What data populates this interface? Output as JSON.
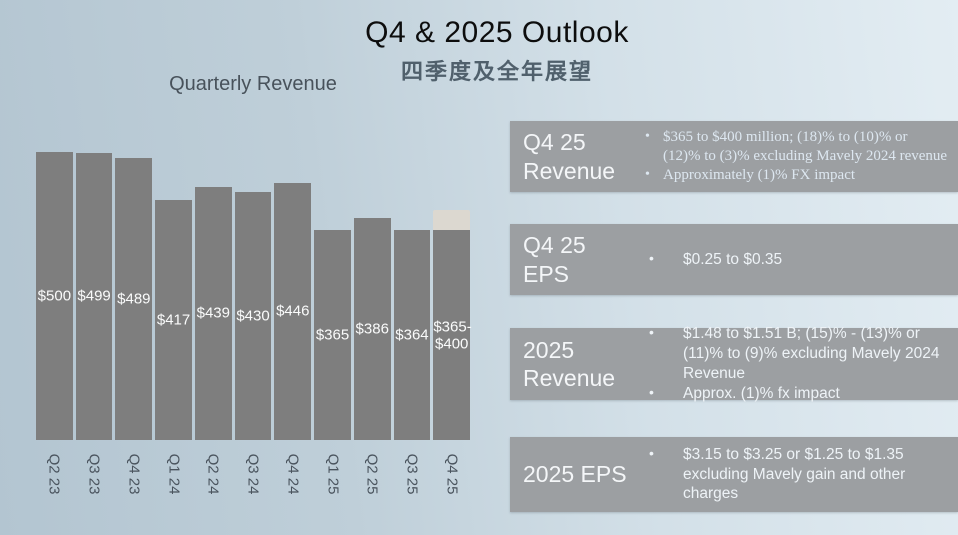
{
  "slide": {
    "title": "Q4 & 2025 Outlook",
    "subtitle": "四季度及全年展望"
  },
  "chart_data": {
    "type": "bar",
    "title": "Quarterly Revenue",
    "categories": [
      "Q2 23",
      "Q3 23",
      "Q4 23",
      "Q1 24",
      "Q2 24",
      "Q3 24",
      "Q4 24",
      "Q1 25",
      "Q2 25",
      "Q3 25",
      "Q4 25"
    ],
    "values": [
      500,
      499,
      489,
      417,
      439,
      430,
      446,
      365,
      386,
      364,
      365
    ],
    "value_labels": [
      "$500",
      "$499",
      "$489",
      "$417",
      "$439",
      "$430",
      "$446",
      "$365",
      "$386",
      "$364",
      "$365- $400"
    ],
    "forecast_range": {
      "category": "Q4 25",
      "low": 365,
      "high": 400,
      "label": "$365-$400"
    },
    "ylim": [
      0,
      500
    ],
    "grid": false,
    "legend": false,
    "bar_color": "#7e7e7e",
    "range_segment_color": "#dcd8d0"
  },
  "outlook_boxes": [
    {
      "label_lines": [
        "Q4 25",
        "Revenue"
      ],
      "bullets": [
        "$365 to $400 million; (18)% to (10)% or (12)% to (3)% excluding Mavely 2024 revenue",
        "Approximately (1)% FX impact"
      ]
    },
    {
      "label_lines": [
        "Q4 25",
        "EPS"
      ],
      "bullets": [
        "$0.25 to $0.35"
      ]
    },
    {
      "label_lines": [
        "2025",
        "Revenue"
      ],
      "bullets": [
        "$1.48 to $1.51 B; (15)% - (13)% or (11)% to (9)% excluding Mavely 2024 Revenue",
        "Approx. (1)% fx impact"
      ]
    },
    {
      "label_lines": [
        "2025 EPS"
      ],
      "bullets": [
        "$3.15 to $3.25 or $1.25 to $1.35 excluding Mavely gain and other charges"
      ]
    }
  ]
}
